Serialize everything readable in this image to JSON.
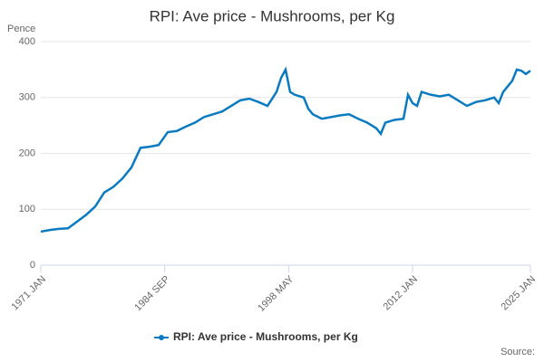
{
  "chart_data": {
    "type": "line",
    "title": "RPI: Ave price - Mushrooms, per Kg",
    "y_label": "Pence",
    "source": "Source:",
    "series": [
      {
        "name": "RPI: Ave price - Mushrooms, per Kg",
        "color": "#0b7bc1",
        "x": [
          1971,
          1972,
          1973,
          1974,
          1975,
          1976,
          1977,
          1978,
          1979,
          1980,
          1981,
          1982,
          1983,
          1984,
          1985,
          1986,
          1987,
          1988,
          1989,
          1990,
          1991,
          1992,
          1993,
          1994,
          1995,
          1996,
          1997,
          1997.5,
          1998,
          1998.5,
          1999,
          2000,
          2000.5,
          2001,
          2002,
          2003,
          2004,
          2005,
          2006,
          2007,
          2008,
          2008.5,
          2009,
          2010,
          2011,
          2011.5,
          2012,
          2012.5,
          2013,
          2014,
          2015,
          2016,
          2017,
          2018,
          2019,
          2020,
          2021,
          2021.5,
          2022,
          2023,
          2023.5,
          2024,
          2024.5,
          2025
        ],
        "values": [
          60,
          63,
          65,
          66,
          78,
          90,
          105,
          130,
          140,
          155,
          175,
          210,
          212,
          215,
          238,
          240,
          248,
          255,
          265,
          270,
          275,
          285,
          295,
          298,
          292,
          285,
          310,
          335,
          350,
          310,
          305,
          300,
          280,
          270,
          262,
          265,
          268,
          270,
          262,
          255,
          245,
          235,
          255,
          260,
          262,
          305,
          290,
          285,
          310,
          305,
          302,
          305,
          295,
          285,
          292,
          295,
          300,
          290,
          310,
          330,
          350,
          348,
          342,
          348
        ]
      }
    ],
    "xlim": [
      1971,
      2025
    ],
    "xticks": [
      {
        "value": 1971,
        "label": "1971 JAN"
      },
      {
        "value": 1984.667,
        "label": "1984 SEP"
      },
      {
        "value": 1998.333,
        "label": "1998 MAY"
      },
      {
        "value": 2012,
        "label": "2012 JAN"
      },
      {
        "value": 2025,
        "label": "2025 JAN"
      }
    ],
    "ylim": [
      0,
      400
    ],
    "yticks": [
      0,
      100,
      200,
      300,
      400
    ],
    "grid": true
  }
}
